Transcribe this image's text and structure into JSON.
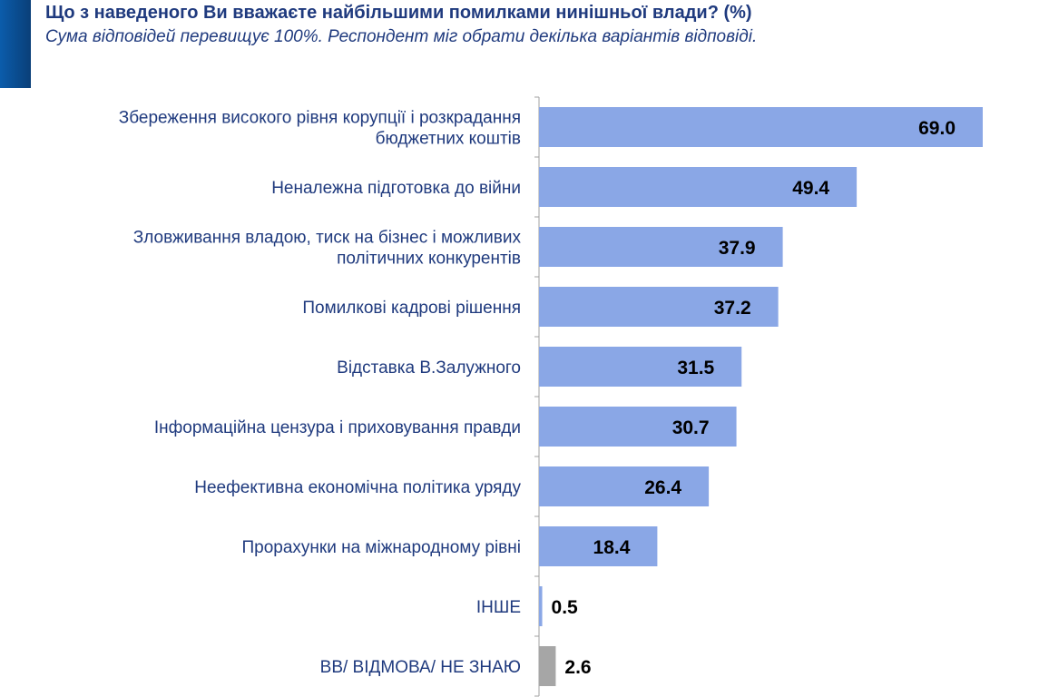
{
  "chart_data": {
    "type": "bar",
    "orientation": "horizontal",
    "title": "Що з наведеного Ви вважаєте найбільшими помилками нинішньої влади? (%)",
    "subtitle": "Сума відповідей перевищує 100%. Респондент міг обрати декілька варіантів відповіді.",
    "categories": [
      [
        "Збереження високого рівня корупції і розкрадання",
        "бюджетних коштів"
      ],
      [
        "Неналежна підготовка до війни"
      ],
      [
        "Зловживання владою, тиск на бізнес і можливих",
        "політичних конкурентів"
      ],
      [
        "Помилкові кадрові рішення"
      ],
      [
        "Відставка В.Залужного"
      ],
      [
        "Інформаційна цензура і приховування правди"
      ],
      [
        "Неефективна економічна політика уряду"
      ],
      [
        "Прорахунки на міжнародному рівні"
      ],
      [
        "ІНШЕ"
      ],
      [
        "ВВ/ ВІДМОВА/ НЕ ЗНАЮ"
      ]
    ],
    "values": [
      69.0,
      49.4,
      37.9,
      37.2,
      31.5,
      30.7,
      26.4,
      18.4,
      0.5,
      2.6
    ],
    "labels": [
      "69.0",
      "49.4",
      "37.9",
      "37.2",
      "31.5",
      "30.7",
      "26.4",
      "18.4",
      "0.5",
      "2.6"
    ],
    "colors": [
      "#8aa7e6",
      "#8aa7e6",
      "#8aa7e6",
      "#8aa7e6",
      "#8aa7e6",
      "#8aa7e6",
      "#8aa7e6",
      "#8aa7e6",
      "#8aa7e6",
      "#a6a6a6"
    ],
    "xlim": [
      0,
      70
    ],
    "grid": false,
    "legend": "none"
  }
}
